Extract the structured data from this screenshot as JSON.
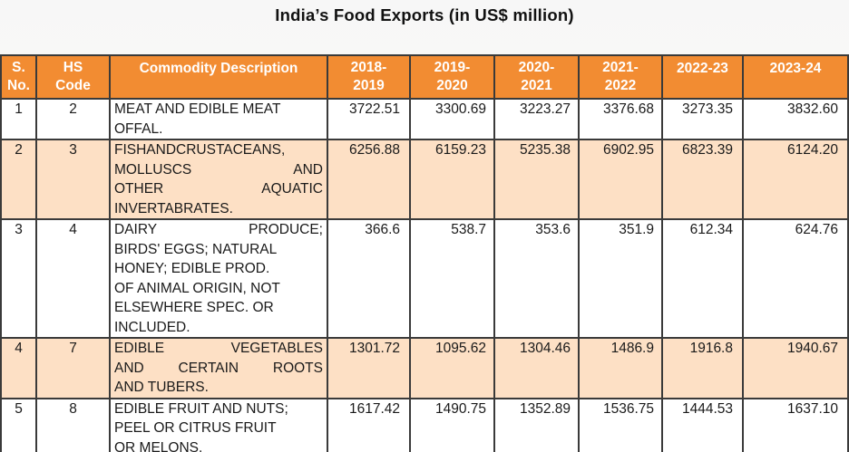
{
  "title": "India’s  Food  Exports  (in US$ million)",
  "columns": [
    "S. No.",
    "HS Code",
    "Commodity Description",
    "2018-2019",
    "2019-2020",
    "2020-2021",
    "2021-2022",
    "2022-23",
    "2023-24"
  ],
  "header": {
    "sno_1": "S.",
    "sno_2": "No.",
    "hs_1": "HS",
    "hs_2": "Code",
    "desc": "Commodity Description",
    "y1_1": "2018-",
    "y1_2": "2019",
    "y2_1": "2019-",
    "y2_2": "2020",
    "y3_1": "2020-",
    "y3_2": "2021",
    "y4_1": "2021-",
    "y4_2": "2022",
    "y5": "2022-23",
    "y6": "2023-24"
  },
  "rows": [
    {
      "sno": "1",
      "hs": "2",
      "desc_lines": [
        "MEAT AND EDIBLE MEAT",
        "OFFAL."
      ],
      "values": [
        "3722.51",
        "3300.69",
        "3223.27",
        "3376.68",
        "3273.35",
        "3832.60"
      ]
    },
    {
      "sno": "2",
      "hs": "3",
      "desc_lines": [
        "FISHANDCRUSTACEANS,",
        "MOLLUSCS              AND",
        "OTHER          AQUATIC",
        "INVERTABRATES."
      ],
      "values": [
        "6256.88",
        "6159.23",
        "5235.38",
        "6902.95",
        "6823.39",
        "6124.20"
      ]
    },
    {
      "sno": "3",
      "hs": "4",
      "desc_lines": [
        "DAIRY          PRODUCE;",
        "BIRDS' EGGS; NATURAL",
        "HONEY; EDIBLE PROD.",
        "OF ANIMAL ORIGIN, NOT",
        "ELSEWHERE SPEC. OR",
        "INCLUDED."
      ],
      "values": [
        "366.6",
        "538.7",
        "353.6",
        "351.9",
        "612.34",
        "624.76"
      ]
    },
    {
      "sno": "4",
      "hs": "7",
      "desc_lines": [
        "EDIBLE      VEGETABLES",
        "AND   CERTAIN   ROOTS",
        "AND TUBERS."
      ],
      "values": [
        "1301.72",
        "1095.62",
        "1304.46",
        "1486.9",
        "1916.8",
        "1940.67"
      ]
    },
    {
      "sno": "5",
      "hs": "8",
      "desc_lines": [
        "EDIBLE FRUIT AND NUTS;",
        "PEEL OR CITRUS FRUIT",
        "OR MELONS."
      ],
      "values": [
        "1617.42",
        "1490.75",
        "1352.89",
        "1536.75",
        "1444.53",
        "1637.10"
      ]
    }
  ]
}
